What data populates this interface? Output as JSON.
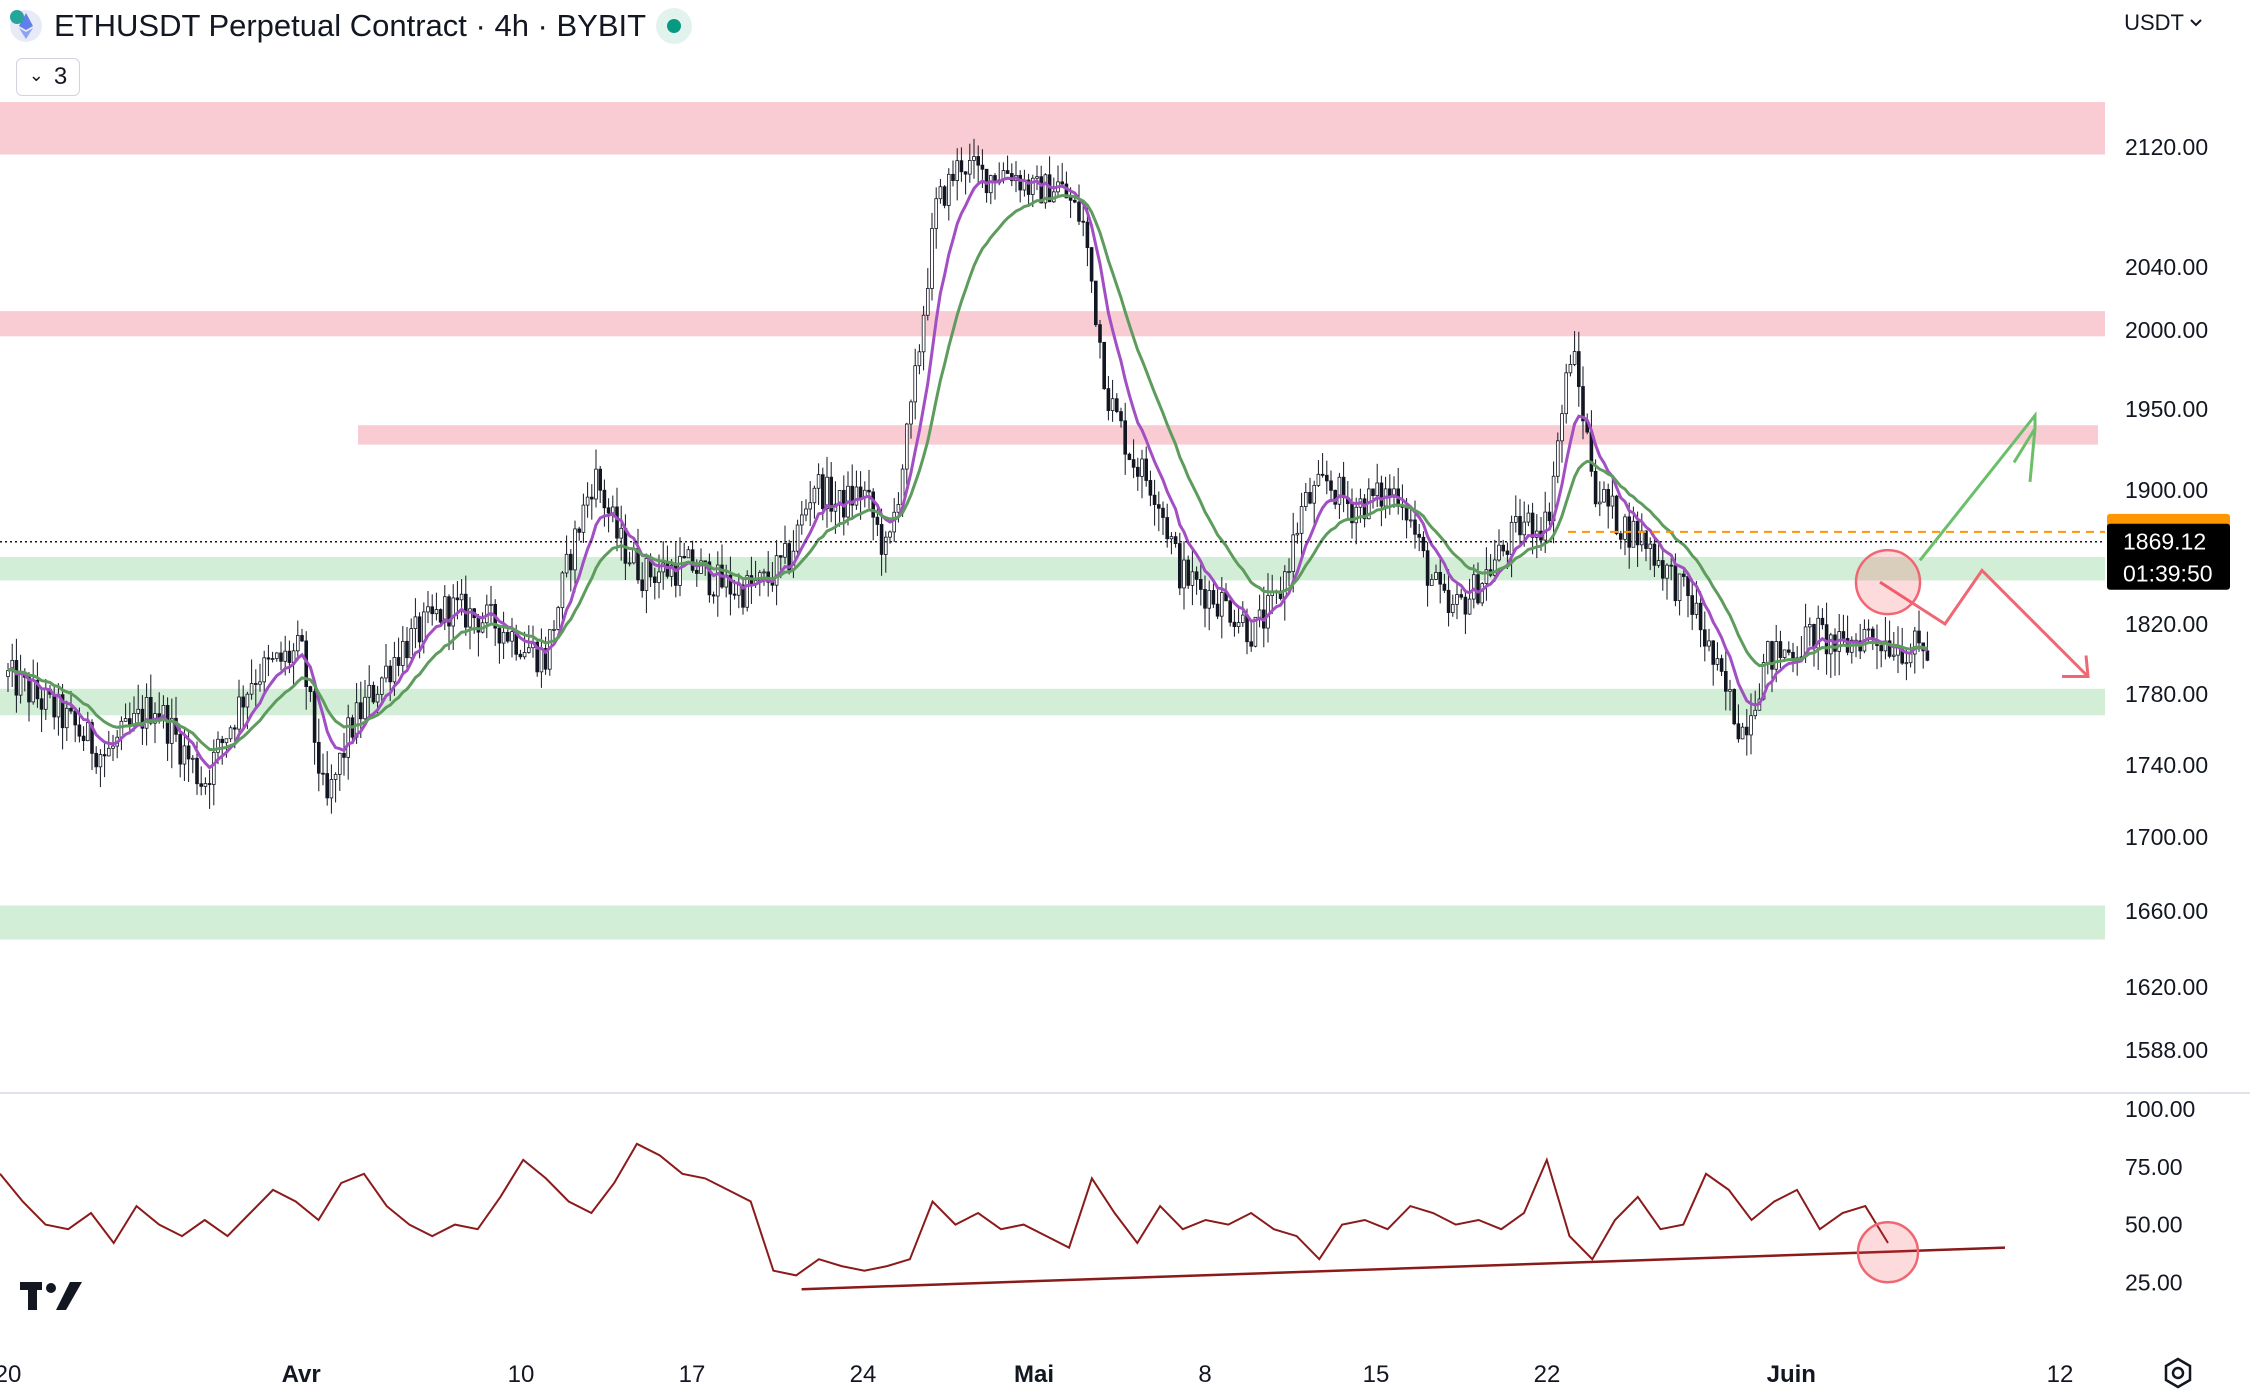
{
  "header": {
    "title": "ETHUSDT Perpetual Contract · 4h · BYBIT",
    "indicator_count": "3",
    "currency": "USDT"
  },
  "icons": {
    "logo": "ethereum-logo-icon",
    "status": "market-open-dot-icon",
    "collapse": "chevron-down-icon",
    "currency_dropdown": "chevron-down-icon",
    "brand": "tradingview-logo-icon",
    "settings": "settings-gear-icon"
  },
  "colors": {
    "resistance_zone": "#f9ccd3",
    "support_zone": "#d3eed6",
    "ema_fast": "#a24fc4",
    "ema_slow": "#5e9c5e",
    "rsi_line": "#8b1a1a",
    "bull_arrow": "#6abf69",
    "bear_arrow": "#f06672",
    "alert_label": "#ff9800",
    "price_label": "#000000"
  },
  "price_labels": {
    "alert_price": "1875.00",
    "last_price": "1869.12",
    "countdown": "01:39:50"
  },
  "chart_data": [
    {
      "type": "candlestick",
      "title": "ETHUSDT Perpetual Contract · 4h · BYBIT",
      "ylim": [
        1560,
        2160
      ],
      "y_ticks": [
        "2120.00",
        "2040.00",
        "2000.00",
        "1950.00",
        "1900.00",
        "1820.00",
        "1780.00",
        "1740.00",
        "1700.00",
        "1660.00",
        "1620.00",
        "1588.00"
      ],
      "x_ticks": [
        {
          "label": "20",
          "bold": false
        },
        {
          "label": "Avr",
          "bold": true
        },
        {
          "label": "10",
          "bold": false
        },
        {
          "label": "17",
          "bold": false
        },
        {
          "label": "24",
          "bold": false
        },
        {
          "label": "Mai",
          "bold": true
        },
        {
          "label": "8",
          "bold": false
        },
        {
          "label": "15",
          "bold": false
        },
        {
          "label": "22",
          "bold": false
        },
        {
          "label": "Juin",
          "bold": true
        },
        {
          "label": "12",
          "bold": false
        }
      ],
      "date_range": [
        "2023-03-20",
        "2023-06-12"
      ],
      "close_path": [
        [
          "2023-03-20",
          1790
        ],
        [
          "2023-03-22",
          1770
        ],
        [
          "2023-03-24",
          1745
        ],
        [
          "2023-03-26",
          1775
        ],
        [
          "2023-03-28",
          1730
        ],
        [
          "2023-03-30",
          1790
        ],
        [
          "2023-04-01",
          1805
        ],
        [
          "2023-04-02",
          1715
        ],
        [
          "2023-04-03",
          1760
        ],
        [
          "2023-04-05",
          1805
        ],
        [
          "2023-04-07",
          1830
        ],
        [
          "2023-04-08",
          1825
        ],
        [
          "2023-04-09",
          1820
        ],
        [
          "2023-04-11",
          1800
        ],
        [
          "2023-04-12",
          1860
        ],
        [
          "2023-04-13",
          1910
        ],
        [
          "2023-04-14",
          1870
        ],
        [
          "2023-04-15",
          1850
        ],
        [
          "2023-04-17",
          1855
        ],
        [
          "2023-04-18",
          1845
        ],
        [
          "2023-04-19",
          1840
        ],
        [
          "2023-04-20",
          1845
        ],
        [
          "2023-04-21",
          1860
        ],
        [
          "2023-04-22",
          1905
        ],
        [
          "2023-04-23",
          1890
        ],
        [
          "2023-04-24",
          1900
        ],
        [
          "2023-04-25",
          1860
        ],
        [
          "2023-04-26",
          1950
        ],
        [
          "2023-04-27",
          2080
        ],
        [
          "2023-04-28",
          2110
        ],
        [
          "2023-04-29",
          2100
        ],
        [
          "2023-04-30",
          2105
        ],
        [
          "2023-05-01",
          2090
        ],
        [
          "2023-05-02",
          2095
        ],
        [
          "2023-05-03",
          2070
        ],
        [
          "2023-05-04",
          1960
        ],
        [
          "2023-05-05",
          1920
        ],
        [
          "2023-05-06",
          1900
        ],
        [
          "2023-05-07",
          1850
        ],
        [
          "2023-05-08",
          1840
        ],
        [
          "2023-05-09",
          1830
        ],
        [
          "2023-05-10",
          1815
        ],
        [
          "2023-05-11",
          1835
        ],
        [
          "2023-05-12",
          1890
        ],
        [
          "2023-05-13",
          1905
        ],
        [
          "2023-05-14",
          1890
        ],
        [
          "2023-05-15",
          1895
        ],
        [
          "2023-05-16",
          1900
        ],
        [
          "2023-05-17",
          1855
        ],
        [
          "2023-05-18",
          1825
        ],
        [
          "2023-05-19",
          1840
        ],
        [
          "2023-05-20",
          1860
        ],
        [
          "2023-05-21",
          1880
        ],
        [
          "2023-05-22",
          1880
        ],
        [
          "2023-05-23",
          1990
        ],
        [
          "2023-05-24",
          1900
        ],
        [
          "2023-05-25",
          1880
        ],
        [
          "2023-05-26",
          1870
        ],
        [
          "2023-05-27",
          1850
        ],
        [
          "2023-05-28",
          1830
        ],
        [
          "2023-05-29",
          1790
        ],
        [
          "2023-05-30",
          1760
        ],
        [
          "2023-05-31",
          1800
        ],
        [
          "2023-06-01",
          1805
        ],
        [
          "2023-06-02",
          1815
        ],
        [
          "2023-06-03",
          1805
        ],
        [
          "2023-06-04",
          1815
        ],
        [
          "2023-06-05",
          1810
        ],
        [
          "2023-06-06",
          1805
        ],
        [
          "2023-06-07",
          1805
        ],
        [
          "2023-06-08",
          1800
        ],
        [
          "2023-06-09",
          1850
        ],
        [
          "2023-06-10",
          1795
        ],
        [
          "2023-06-11",
          1830
        ],
        [
          "2023-06-12",
          1840
        ]
      ],
      "zones": [
        {
          "kind": "resistance",
          "from": 2115,
          "to": 2150
        },
        {
          "kind": "resistance",
          "from": 1996,
          "to": 2012
        },
        {
          "kind": "resistance",
          "from": 1928,
          "to": 1940
        },
        {
          "kind": "support",
          "from": 1846,
          "to": 1860
        },
        {
          "kind": "support",
          "from": 1768,
          "to": 1783
        },
        {
          "kind": "support",
          "from": 1645,
          "to": 1663
        }
      ],
      "annotations": {
        "alert_line": 1875,
        "last_price": 1869.12,
        "bullish_scenario": [
          1858,
          1906,
          1938
        ],
        "bearish_scenario": [
          1845,
          1820,
          1852,
          1790
        ]
      }
    },
    {
      "type": "line",
      "title": "",
      "ylim": [
        0,
        100
      ],
      "y_ticks": [
        "100.00",
        "75.00",
        "50.00",
        "25.00"
      ],
      "series": [
        {
          "values": [
            72,
            60,
            50,
            48,
            55,
            42,
            58,
            50,
            45,
            52,
            45,
            55,
            65,
            60,
            52,
            68,
            72,
            58,
            50,
            45,
            50,
            48,
            62,
            78,
            70,
            60,
            55,
            68,
            85,
            80,
            72,
            70,
            65,
            60,
            30,
            28,
            35,
            32,
            30,
            32,
            35,
            60,
            50,
            55,
            48,
            50,
            45,
            40,
            70,
            55,
            42,
            58,
            48,
            52,
            50,
            55,
            48,
            45,
            35,
            50,
            52,
            48,
            58,
            55,
            50,
            52,
            48,
            55,
            78,
            45,
            35,
            52,
            62,
            48,
            50,
            72,
            65,
            52,
            60,
            65,
            48,
            55,
            58,
            42
          ]
        }
      ],
      "trendline": [
        [
          0.36,
          22
        ],
        [
          0.89,
          40
        ]
      ]
    }
  ]
}
